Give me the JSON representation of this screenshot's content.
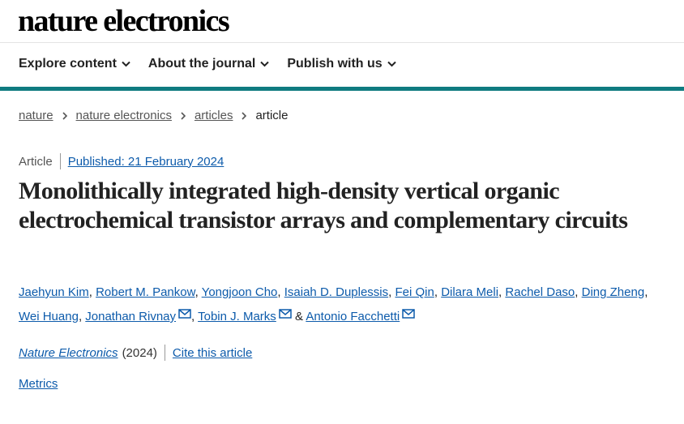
{
  "header": {
    "logo": "nature electronics",
    "nav": [
      {
        "label": "Explore content"
      },
      {
        "label": "About the journal"
      },
      {
        "label": "Publish with us"
      }
    ]
  },
  "breadcrumb": {
    "items": [
      "nature",
      "nature electronics",
      "articles"
    ],
    "current": "article"
  },
  "article": {
    "type": "Article",
    "published": "Published: 21 February 2024",
    "title": "Monolithically integrated high-density vertical organic electrochemical transistor arrays and complementary circuits",
    "authors": [
      "Jaehyun Kim",
      "Robert M. Pankow",
      "Yongjoon Cho",
      "Isaiah D. Duplessis",
      "Fei Qin",
      "Dilara Meli",
      "Rachel Daso",
      "Ding Zheng",
      "Wei Huang",
      "Jonathan Rivnay",
      "Tobin J. Marks",
      "Antonio Facchetti"
    ],
    "journal": "Nature Electronics",
    "year": "(2024)",
    "cite": "Cite this article",
    "metrics": "Metrics"
  },
  "colors": {
    "accent_bar": "#0f7b80",
    "link": "#0d5bab"
  },
  "icons": [
    "chevron-down-icon",
    "chevron-right-icon",
    "mail-icon"
  ]
}
